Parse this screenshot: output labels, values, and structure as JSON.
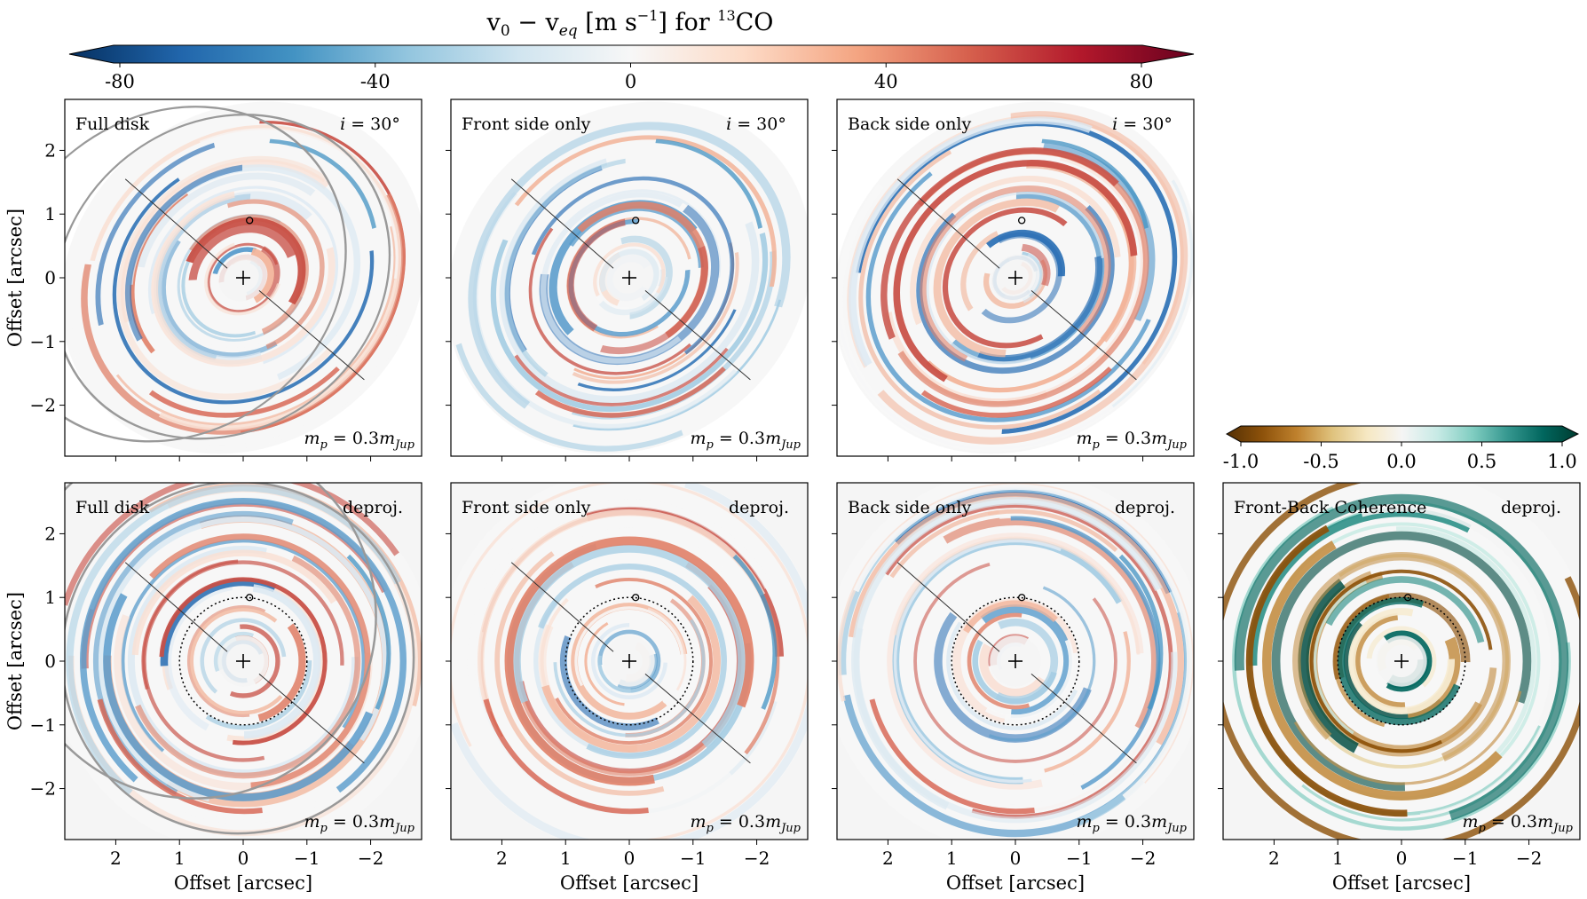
{
  "chart_data": {
    "type": "heatmap",
    "title_parts": {
      "v0": "v",
      "sub0": "0",
      "minus": " − ",
      "veq": "v",
      "subeq": "eq",
      "units_open": " [m s",
      "units_exp": "−1",
      "units_close": "] for ",
      "iso_exp": "13",
      "species": "CO"
    },
    "colorbars": [
      {
        "name": "velocity-colorbar",
        "colormap": "RdBu_r",
        "range": [
          -80,
          80
        ],
        "ticks": [
          "-80",
          "-40",
          "0",
          "40",
          "80"
        ],
        "tick_values": [
          -80,
          -40,
          0,
          40,
          80
        ]
      },
      {
        "name": "coherence-colorbar",
        "colormap": "BrBG",
        "range": [
          -1.0,
          1.0
        ],
        "ticks": [
          "-1.0",
          "-0.5",
          "0.0",
          "0.5",
          "1.0"
        ],
        "tick_values": [
          -1.0,
          -0.5,
          0.0,
          0.5,
          1.0
        ]
      }
    ],
    "axes": {
      "xlabel": "Offset [arcsec]",
      "ylabel": "Offset [arcsec]",
      "xlim": [
        2.8,
        -2.8
      ],
      "ylim": [
        -2.8,
        2.8
      ],
      "xticks": [
        2,
        1,
        0,
        -1,
        -2
      ],
      "xtick_labels": [
        "2",
        "1",
        "0",
        "−1",
        "−2"
      ],
      "yticks": [
        2,
        1,
        0,
        -1,
        -2
      ],
      "ytick_labels": [
        "2",
        "1",
        "0",
        "−1",
        "−2"
      ]
    },
    "mass_label": {
      "m": "m",
      "sub_p": "p",
      "eq": " = 0.3",
      "m2": "m",
      "sub_jup": "Jup"
    },
    "panels": [
      {
        "id": "p1",
        "row": 0,
        "col": 0,
        "title": "Full disk",
        "tag_i": "i",
        "tag_rest": " = 30°",
        "planet_x": -0.1,
        "planet_y": 0.9,
        "cmap": "vel"
      },
      {
        "id": "p2",
        "row": 0,
        "col": 1,
        "title": "Front side only",
        "tag_i": "i",
        "tag_rest": " = 30°",
        "planet_x": -0.1,
        "planet_y": 0.9,
        "cmap": "vel"
      },
      {
        "id": "p3",
        "row": 0,
        "col": 2,
        "title": "Back side only",
        "tag_i": "i",
        "tag_rest": " = 30°",
        "planet_x": -0.1,
        "planet_y": 0.9,
        "cmap": "vel"
      },
      {
        "id": "p4",
        "row": 1,
        "col": 0,
        "title": "Full disk",
        "tag": "deproj.",
        "planet_x": -0.1,
        "planet_y": 1.0,
        "cmap": "vel"
      },
      {
        "id": "p5",
        "row": 1,
        "col": 1,
        "title": "Front side only",
        "tag": "deproj.",
        "planet_x": -0.1,
        "planet_y": 1.0,
        "cmap": "vel"
      },
      {
        "id": "p6",
        "row": 1,
        "col": 2,
        "title": "Back side only",
        "tag": "deproj.",
        "planet_x": -0.1,
        "planet_y": 1.0,
        "cmap": "vel"
      },
      {
        "id": "p7",
        "row": 1,
        "col": 3,
        "title": "Front-Back Coherence",
        "tag": "deproj.",
        "planet_x": -0.1,
        "planet_y": 1.0,
        "cmap": "coh"
      }
    ]
  }
}
